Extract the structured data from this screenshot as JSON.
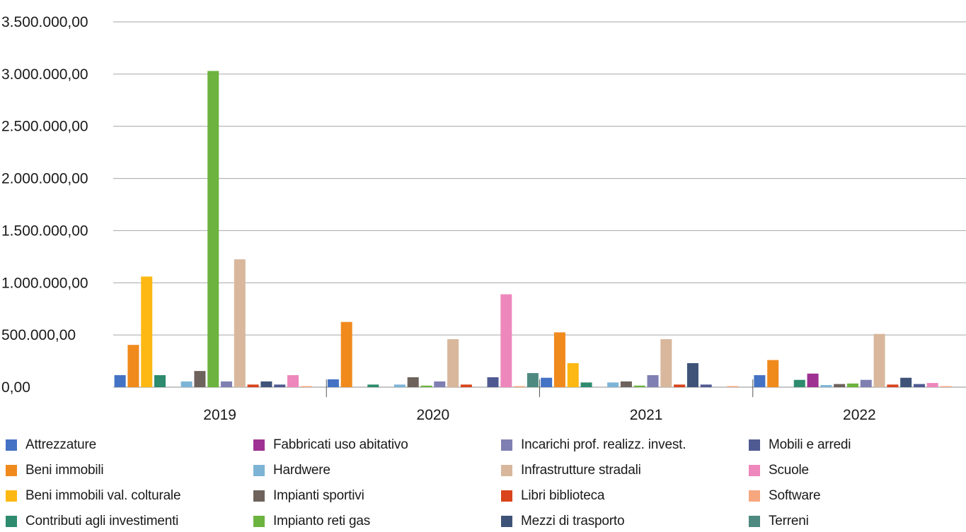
{
  "chart_data": {
    "type": "bar",
    "categories": [
      "2019",
      "2020",
      "2021",
      "2022"
    ],
    "ylim": [
      0,
      3500000
    ],
    "y_ticks": [
      "0,00",
      "500.000,00",
      "1.000.000,00",
      "1.500.000,00",
      "2.000.000,00",
      "2.500.000,00",
      "3.000.000,00",
      "3.500.000,00"
    ],
    "grid": true,
    "legend_position": "bottom",
    "series": [
      {
        "name": "Attrezzature",
        "color": "#4472C4",
        "values": [
          115000,
          75000,
          90000,
          115000
        ]
      },
      {
        "name": "Beni immobili",
        "color": "#F08A1D",
        "values": [
          405000,
          625000,
          525000,
          260000
        ]
      },
      {
        "name": "Beni immobili val. colturale",
        "color": "#FDB813",
        "values": [
          1060000,
          0,
          230000,
          0
        ]
      },
      {
        "name": "Contributi agli investimenti",
        "color": "#2E8B6E",
        "values": [
          115000,
          25000,
          45000,
          70000
        ]
      },
      {
        "name": "Fabbricati uso abitativo",
        "color": "#9E3192",
        "values": [
          0,
          0,
          0,
          130000
        ]
      },
      {
        "name": "Hardwere",
        "color": "#7DB4D6",
        "values": [
          55000,
          25000,
          45000,
          20000
        ]
      },
      {
        "name": "Impianti sportivi",
        "color": "#6E625C",
        "values": [
          155000,
          95000,
          55000,
          30000
        ]
      },
      {
        "name": "Impianto reti gas",
        "color": "#6DB33F",
        "values": [
          3030000,
          15000,
          15000,
          35000
        ]
      },
      {
        "name": "Incarichi prof. realizz. invest.",
        "color": "#7F7FB2",
        "values": [
          55000,
          55000,
          115000,
          70000
        ]
      },
      {
        "name": "Infrastrutture stradali",
        "color": "#D8B79C",
        "values": [
          1225000,
          460000,
          460000,
          510000
        ]
      },
      {
        "name": "Libri biblioteca",
        "color": "#D9441C",
        "values": [
          25000,
          25000,
          25000,
          25000
        ]
      },
      {
        "name": "Mezzi di trasporto",
        "color": "#3F5378",
        "values": [
          55000,
          0,
          230000,
          90000
        ]
      },
      {
        "name": "Mobili e arredi",
        "color": "#505A92",
        "values": [
          25000,
          95000,
          25000,
          30000
        ]
      },
      {
        "name": "Scuole",
        "color": "#EE87BC",
        "values": [
          115000,
          890000,
          0,
          40000
        ]
      },
      {
        "name": "Software",
        "color": "#F6A77E",
        "values": [
          10000,
          10000,
          10000,
          10000
        ]
      },
      {
        "name": "Terreni",
        "color": "#4E8A80",
        "values": [
          0,
          135000,
          0,
          0
        ]
      }
    ]
  }
}
